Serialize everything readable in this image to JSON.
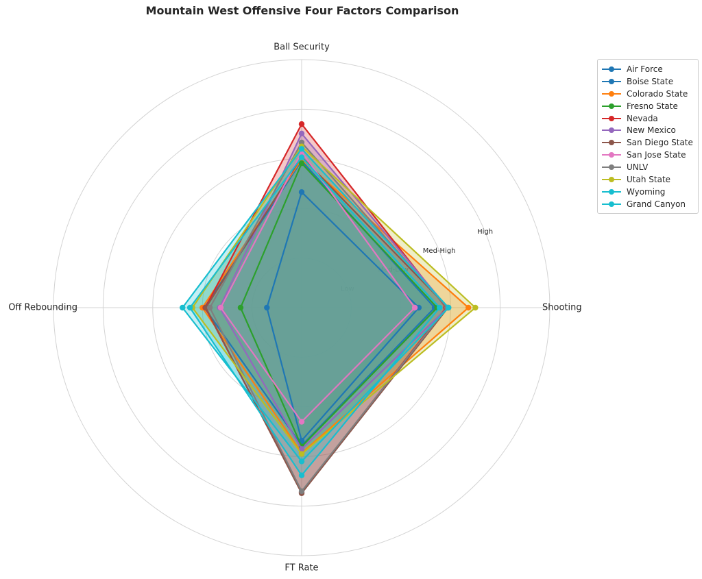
{
  "chart_data": {
    "type": "radar",
    "title": "Mountain West Offensive Four Factors Comparison",
    "axes": [
      "Shooting",
      "Ball Security",
      "Off Rebounding",
      "FT Rate"
    ],
    "ring_labels": [
      "Low",
      "Med-Low",
      "Med-High",
      "High"
    ],
    "rlim": [
      0,
      5
    ],
    "grid": true,
    "legend_position": "upper right outside",
    "series": [
      {
        "name": "Air Force",
        "color": "#1f77b4",
        "values": [
          2.36,
          2.33,
          0.7,
          2.68
        ]
      },
      {
        "name": "Boise State",
        "color": "#1f77b4",
        "values": [
          2.68,
          2.96,
          1.96,
          2.78
        ]
      },
      {
        "name": "Colorado State",
        "color": "#ff7f0e",
        "values": [
          3.36,
          2.99,
          2.0,
          2.93
        ]
      },
      {
        "name": "Fresno State",
        "color": "#2ca02c",
        "values": [
          2.73,
          2.91,
          1.23,
          2.8
        ]
      },
      {
        "name": "Nevada",
        "color": "#d62728",
        "values": [
          2.91,
          3.7,
          1.94,
          3.72
        ]
      },
      {
        "name": "New Mexico",
        "color": "#9467bd",
        "values": [
          2.94,
          3.51,
          1.65,
          2.85
        ]
      },
      {
        "name": "San Diego State",
        "color": "#8c564b",
        "values": [
          2.95,
          3.04,
          1.93,
          3.74
        ]
      },
      {
        "name": "San Jose State",
        "color": "#e377c2",
        "values": [
          2.28,
          3.14,
          1.63,
          2.3
        ]
      },
      {
        "name": "UNLV",
        "color": "#7f7f7f",
        "values": [
          2.93,
          3.33,
          1.85,
          3.7
        ]
      },
      {
        "name": "Utah State",
        "color": "#bcbd22",
        "values": [
          3.5,
          3.25,
          2.2,
          2.95
        ]
      },
      {
        "name": "Wyoming",
        "color": "#17becf",
        "values": [
          2.96,
          3.2,
          2.4,
          3.1
        ]
      },
      {
        "name": "Grand Canyon",
        "color": "#17becf",
        "values": [
          2.78,
          3.03,
          2.25,
          3.38
        ]
      }
    ]
  }
}
